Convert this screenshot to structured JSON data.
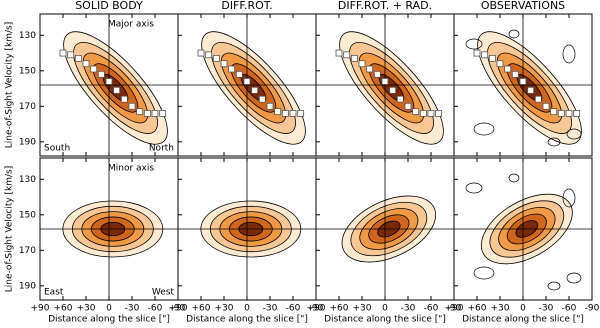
{
  "columns": [
    "SOLID BODY",
    "DIFF.ROT.",
    "DIFF.ROT. + RAD.",
    "OBSERVATIONS"
  ],
  "rows": [
    {
      "annotation": "Major axis",
      "left_label": "South",
      "right_label": "North"
    },
    {
      "annotation": "Minor axis",
      "left_label": "East",
      "right_label": "West"
    }
  ],
  "y_label": "Line-of-Sight Velocity [km/s]",
  "x_label": "Distance along the slice [\"]",
  "xlim": [
    90,
    -90
  ],
  "xticks": [
    {
      "value": 90,
      "label": "+90"
    },
    {
      "value": 60,
      "label": "+60"
    },
    {
      "value": 30,
      "label": "+30"
    },
    0,
    -30,
    -60,
    -90
  ],
  "ylim": [
    118,
    198
  ],
  "y_inverted": true,
  "yticks": [
    130,
    150,
    170,
    190
  ],
  "systemic_velocity": 158,
  "rotation_curve": {
    "x": [
      60,
      50,
      40,
      30,
      20,
      10,
      0,
      -10,
      -20,
      -30,
      -40,
      -50,
      -60,
      -70
    ],
    "values": [
      140,
      141,
      143,
      146,
      149,
      152,
      156,
      161,
      166,
      170,
      173,
      174,
      174,
      174
    ]
  }
}
